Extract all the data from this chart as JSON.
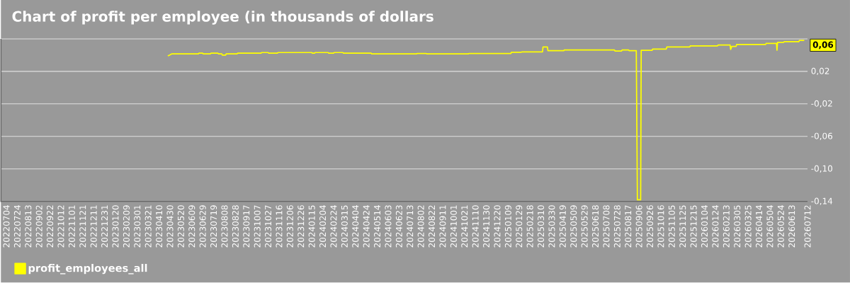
{
  "chart_data": {
    "type": "line",
    "title": "Chart of profit per employee (in thousands of dollars",
    "x": [
      "2023-04-26",
      "2023-04-29",
      "2023-05-03",
      "2023-06-21",
      "2023-06-22",
      "2023-06-29",
      "2023-06-30",
      "2023-07-13",
      "2023-07-14",
      "2023-07-27",
      "2023-07-28",
      "2023-08-03",
      "2023-08-04",
      "2023-08-10",
      "2023-08-11",
      "2023-08-31",
      "2023-09-01",
      "2023-10-14",
      "2023-10-15",
      "2023-10-27",
      "2023-10-28",
      "2023-11-13",
      "2023-11-14",
      "2024-01-15",
      "2024-01-16",
      "2024-01-20",
      "2024-01-21",
      "2024-02-14",
      "2024-02-15",
      "2024-02-24",
      "2024-02-25",
      "2024-03-12",
      "2024-03-13",
      "2024-05-03",
      "2024-05-04",
      "2024-07-25",
      "2024-07-26",
      "2024-08-12",
      "2024-08-13",
      "2024-10-28",
      "2024-10-29",
      "2025-01-14",
      "2025-01-15",
      "2025-02-02",
      "2025-02-03",
      "2025-03-13",
      "2025-03-14",
      "2025-03-22",
      "2025-03-23",
      "2025-04-21",
      "2025-04-22",
      "2025-07-23",
      "2025-07-24",
      "2025-08-05",
      "2025-08-06",
      "2025-08-18",
      "2025-08-19",
      "2025-09-01",
      "2025-09-03",
      "2025-09-09",
      "2025-09-10",
      "2025-09-30",
      "2025-10-01",
      "2025-10-26",
      "2025-10-27",
      "2025-12-08",
      "2025-12-09",
      "2026-01-28",
      "2026-01-29",
      "2026-02-20",
      "2026-02-21",
      "2026-02-23",
      "2026-03-03",
      "2026-03-04",
      "2026-04-26",
      "2026-04-27",
      "2026-05-16",
      "2026-05-17",
      "2026-05-18",
      "2026-05-29",
      "2026-05-30",
      "2026-06-26",
      "2026-06-27",
      "2026-07-06"
    ],
    "series": [
      {
        "name": "profit_employees_all",
        "color": "#ffff00",
        "values": [
          0.039,
          0.04,
          0.0415,
          0.0415,
          0.0424,
          0.0424,
          0.0415,
          0.0415,
          0.0424,
          0.0424,
          0.0415,
          0.0415,
          0.04,
          0.04,
          0.0415,
          0.0415,
          0.0424,
          0.0424,
          0.0432,
          0.0432,
          0.0424,
          0.0424,
          0.0432,
          0.0432,
          0.0424,
          0.0424,
          0.0432,
          0.0432,
          0.0424,
          0.0424,
          0.0432,
          0.0432,
          0.0424,
          0.0424,
          0.0415,
          0.0415,
          0.042,
          0.042,
          0.0415,
          0.0415,
          0.042,
          0.042,
          0.0435,
          0.0435,
          0.044,
          0.044,
          0.05,
          0.05,
          0.0455,
          0.0455,
          0.0463,
          0.0463,
          0.045,
          0.045,
          0.0463,
          0.0463,
          0.0455,
          0.0455,
          -0.138,
          -0.138,
          0.046,
          0.046,
          0.0475,
          0.0475,
          0.05,
          0.05,
          0.0513,
          0.0513,
          0.0525,
          0.0525,
          0.047,
          0.0507,
          0.0507,
          0.053,
          0.053,
          0.0545,
          0.0545,
          0.046,
          0.0557,
          0.0557,
          0.0565,
          0.0565,
          0.058,
          0.058
        ]
      }
    ],
    "xlim": [
      "2022-06-24",
      "2026-07-12"
    ],
    "xticks": [
      {
        "value": "2022-07-04",
        "label": "20220704"
      },
      {
        "value": "2022-07-24",
        "label": "20220724"
      },
      {
        "value": "2022-08-13",
        "label": "20220813"
      },
      {
        "value": "2022-09-02",
        "label": "20220902"
      },
      {
        "value": "2022-09-22",
        "label": "20220922"
      },
      {
        "value": "2022-10-12",
        "label": "20221012"
      },
      {
        "value": "2022-11-01",
        "label": "20221101"
      },
      {
        "value": "2022-11-21",
        "label": "20221121"
      },
      {
        "value": "2022-12-11",
        "label": "20221211"
      },
      {
        "value": "2022-12-31",
        "label": "20221231"
      },
      {
        "value": "2023-01-20",
        "label": "20230120"
      },
      {
        "value": "2023-02-09",
        "label": "20230209"
      },
      {
        "value": "2023-03-01",
        "label": "20230301"
      },
      {
        "value": "2023-03-21",
        "label": "20230321"
      },
      {
        "value": "2023-04-10",
        "label": "20230410"
      },
      {
        "value": "2023-04-30",
        "label": "20230430"
      },
      {
        "value": "2023-05-20",
        "label": "20230520"
      },
      {
        "value": "2023-06-09",
        "label": "20230609"
      },
      {
        "value": "2023-06-29",
        "label": "20230629"
      },
      {
        "value": "2023-07-19",
        "label": "20230719"
      },
      {
        "value": "2023-08-08",
        "label": "20230808"
      },
      {
        "value": "2023-08-28",
        "label": "20230828"
      },
      {
        "value": "2023-09-17",
        "label": "20230917"
      },
      {
        "value": "2023-10-07",
        "label": "20231007"
      },
      {
        "value": "2023-10-27",
        "label": "20231027"
      },
      {
        "value": "2023-11-16",
        "label": "20231116"
      },
      {
        "value": "2023-12-06",
        "label": "20231206"
      },
      {
        "value": "2023-12-26",
        "label": "20231226"
      },
      {
        "value": "2024-01-15",
        "label": "20240115"
      },
      {
        "value": "2024-02-04",
        "label": "20240204"
      },
      {
        "value": "2024-02-24",
        "label": "20240224"
      },
      {
        "value": "2024-03-15",
        "label": "20240315"
      },
      {
        "value": "2024-04-04",
        "label": "20240404"
      },
      {
        "value": "2024-04-24",
        "label": "20240424"
      },
      {
        "value": "2024-05-14",
        "label": "20240514"
      },
      {
        "value": "2024-06-03",
        "label": "20240603"
      },
      {
        "value": "2024-06-23",
        "label": "20240623"
      },
      {
        "value": "2024-07-13",
        "label": "20240713"
      },
      {
        "value": "2024-08-02",
        "label": "20240802"
      },
      {
        "value": "2024-08-22",
        "label": "20240822"
      },
      {
        "value": "2024-09-11",
        "label": "20240911"
      },
      {
        "value": "2024-10-01",
        "label": "20241001"
      },
      {
        "value": "2024-10-21",
        "label": "20241021"
      },
      {
        "value": "2024-11-10",
        "label": "20241110"
      },
      {
        "value": "2024-11-30",
        "label": "20241130"
      },
      {
        "value": "2024-12-20",
        "label": "20241220"
      },
      {
        "value": "2025-01-09",
        "label": "20250109"
      },
      {
        "value": "2025-01-29",
        "label": "20250129"
      },
      {
        "value": "2025-02-18",
        "label": "20250218"
      },
      {
        "value": "2025-03-10",
        "label": "20250310"
      },
      {
        "value": "2025-03-30",
        "label": "20250330"
      },
      {
        "value": "2025-04-19",
        "label": "20250419"
      },
      {
        "value": "2025-05-09",
        "label": "20250509"
      },
      {
        "value": "2025-05-29",
        "label": "20250529"
      },
      {
        "value": "2025-06-18",
        "label": "20250618"
      },
      {
        "value": "2025-07-08",
        "label": "20250708"
      },
      {
        "value": "2025-07-28",
        "label": "20250728"
      },
      {
        "value": "2025-08-17",
        "label": "20250817"
      },
      {
        "value": "2025-09-06",
        "label": "20250906"
      },
      {
        "value": "2025-09-26",
        "label": "20250926"
      },
      {
        "value": "2025-10-16",
        "label": "20251016"
      },
      {
        "value": "2025-11-05",
        "label": "20251105"
      },
      {
        "value": "2025-11-25",
        "label": "20251125"
      },
      {
        "value": "2025-12-15",
        "label": "20251215"
      },
      {
        "value": "2026-01-04",
        "label": "20260104"
      },
      {
        "value": "2026-01-24",
        "label": "20260124"
      },
      {
        "value": "2026-02-13",
        "label": "20260213"
      },
      {
        "value": "2026-03-05",
        "label": "20260305"
      },
      {
        "value": "2026-03-25",
        "label": "20260325"
      },
      {
        "value": "2026-04-14",
        "label": "20260414"
      },
      {
        "value": "2026-05-04",
        "label": "20260504"
      },
      {
        "value": "2026-05-24",
        "label": "20260524"
      },
      {
        "value": "2026-06-13",
        "label": "20260613"
      },
      {
        "value": "2026-07-12",
        "label": "20260712"
      }
    ],
    "ylim": [
      -0.14,
      0.06
    ],
    "yticks": [
      {
        "value": -0.14,
        "label": "-0,14"
      },
      {
        "value": -0.1,
        "label": "-0,10"
      },
      {
        "value": -0.06,
        "label": "-0,06"
      },
      {
        "value": -0.02,
        "label": "-0,02"
      },
      {
        "value": 0.02,
        "label": "0,02"
      },
      {
        "value": 0.06,
        "label": null
      }
    ],
    "annotations": [
      {
        "text": "0,06",
        "x": "2026-07-06",
        "y": 0.058
      }
    ],
    "grid": "y",
    "legend": "bottom left"
  }
}
